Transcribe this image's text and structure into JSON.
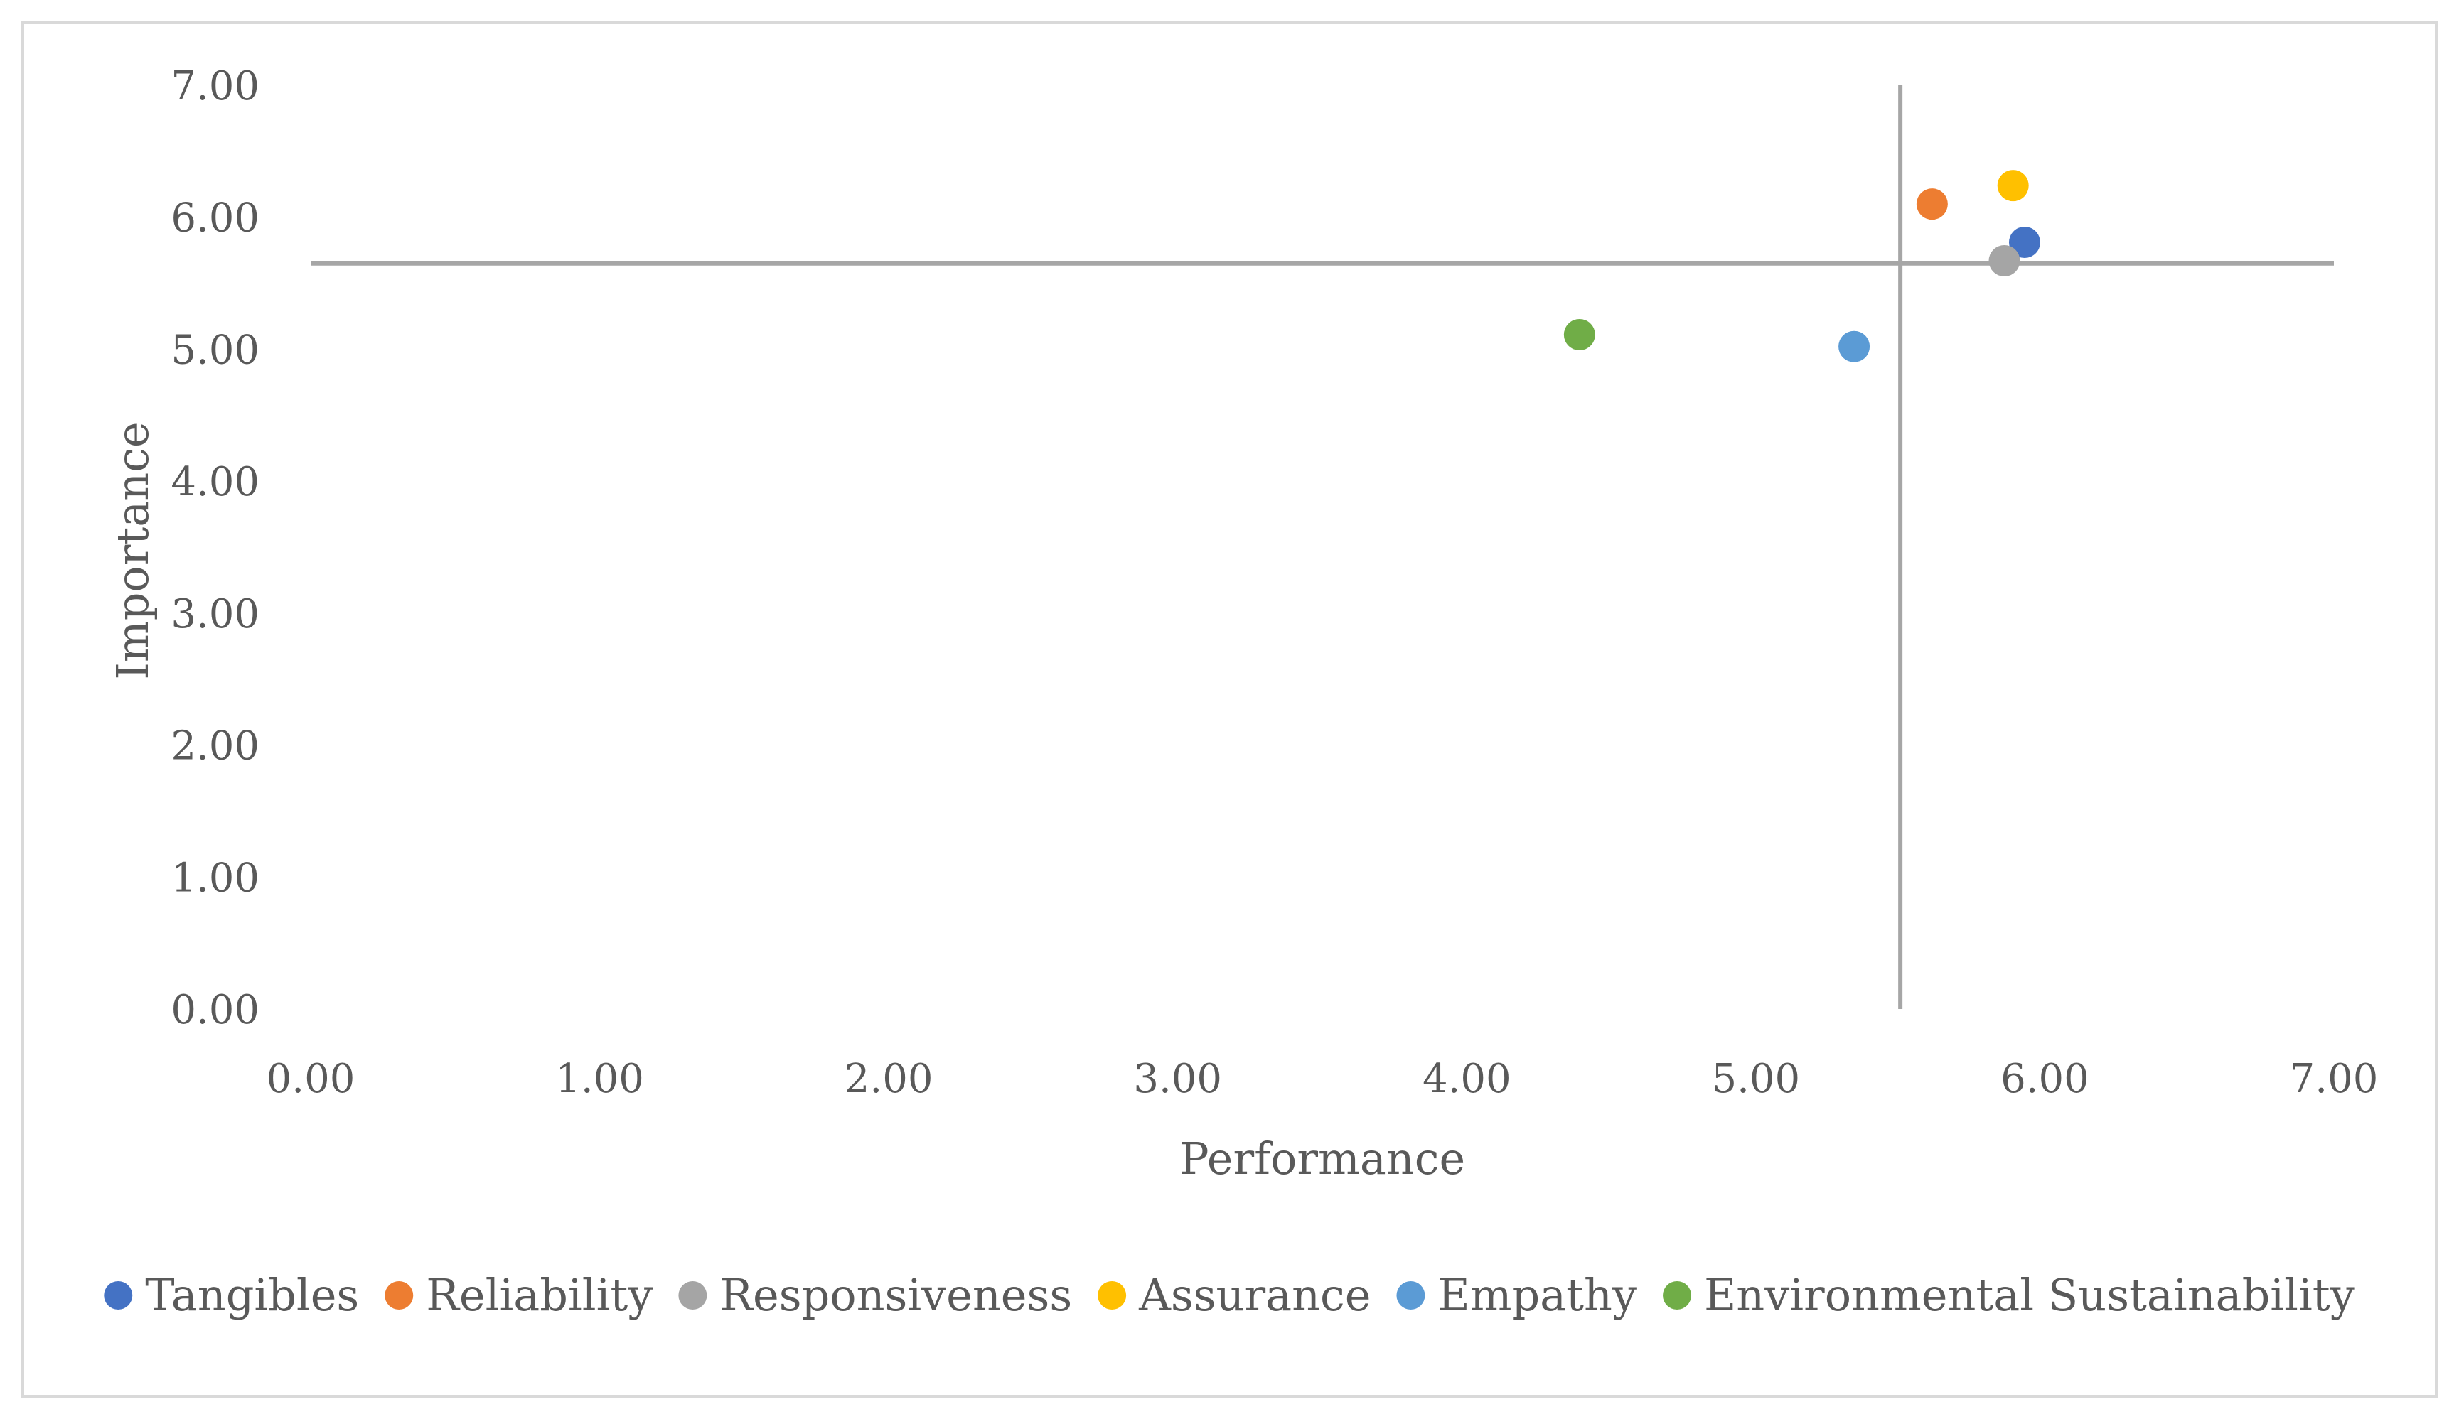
{
  "chart_data": {
    "type": "scatter",
    "title": "",
    "xlabel": "Performance",
    "ylabel": "Importance",
    "xlim": [
      0,
      7
    ],
    "ylim": [
      0,
      7
    ],
    "xticks": [
      "0.00",
      "1.00",
      "2.00",
      "3.00",
      "4.00",
      "5.00",
      "6.00",
      "7.00"
    ],
    "yticks": [
      "0.00",
      "1.00",
      "2.00",
      "3.00",
      "4.00",
      "5.00",
      "6.00",
      "7.00"
    ],
    "grid": false,
    "legend_position": "bottom",
    "reference_lines": {
      "x": 5.5,
      "y": 5.65
    },
    "series": [
      {
        "name": "Tangibles",
        "color": "#4472C4",
        "x": 5.93,
        "y": 5.81
      },
      {
        "name": "Reliability",
        "color": "#ED7D31",
        "x": 5.61,
        "y": 6.1
      },
      {
        "name": "Responsiveness",
        "color": "#A5A5A5",
        "x": 5.86,
        "y": 5.67
      },
      {
        "name": "Assurance",
        "color": "#FFC000",
        "x": 5.89,
        "y": 6.24
      },
      {
        "name": "Empathy",
        "color": "#5B9BD5",
        "x": 5.34,
        "y": 5.02
      },
      {
        "name": "Environmental Sustainability",
        "color": "#70AD47",
        "x": 4.39,
        "y": 5.11
      }
    ]
  }
}
